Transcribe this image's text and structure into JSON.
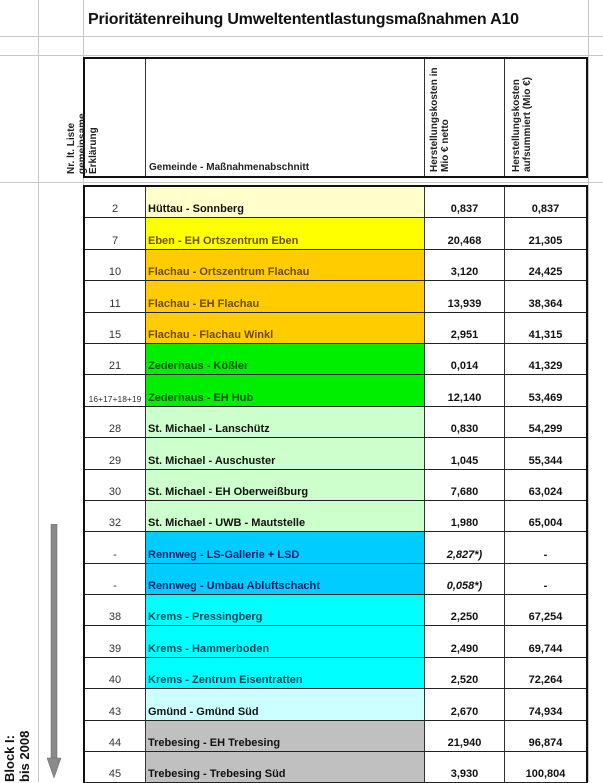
{
  "title": "Prioritätenreihung Umweltententlastungsmaßnahmen A10",
  "headers": {
    "nr": "Nr. lt. Liste gemeinsame Erklärung",
    "nr_lines": [
      "Nr. lt. Liste",
      "gemeinsame",
      "Erklärung"
    ],
    "gemeinde": "Gemeinde - Maßnahmenabschnitt",
    "kosten_lines": [
      "Herstellungskosten in",
      "Mio € netto"
    ],
    "summe_lines": [
      "Herstellungskosten",
      "aufsummiert (Mio €)"
    ]
  },
  "block_label_lines": [
    "Block I:",
    "bis 2008"
  ],
  "rows": [
    {
      "nr": "2",
      "name": "Hüttau - Sonnberg",
      "cost": "0,837",
      "sum": "0,837",
      "bg": "#FFFFCC",
      "fg": "#111111"
    },
    {
      "nr": "7",
      "name": "Eben - EH Ortszentrum Eben",
      "cost": "20,468",
      "sum": "21,305",
      "bg": "#FFFF00",
      "fg": "#6b5200"
    },
    {
      "nr": "10",
      "name": "Flachau - Ortszentrum Flachau",
      "cost": "3,120",
      "sum": "24,425",
      "bg": "#FFCC00",
      "fg": "#6b4a00"
    },
    {
      "nr": "11",
      "name": "Flachau - EH Flachau",
      "cost": "13,939",
      "sum": "38,364",
      "bg": "#FFCC00",
      "fg": "#6b4a00"
    },
    {
      "nr": "15",
      "name": "Flachau - Flachau Winkl",
      "cost": "2,951",
      "sum": "41,315",
      "bg": "#FFCC00",
      "fg": "#6b4a00"
    },
    {
      "nr": "21",
      "name": "Zederhaus - Kößler",
      "cost": "0,014",
      "sum": "41,329",
      "bg": "#00EE00",
      "fg": "#005500"
    },
    {
      "nr": "16+17+18+19",
      "name": "Zederhaus - EH Hub",
      "cost": "12,140",
      "sum": "53,469",
      "bg": "#00EE00",
      "fg": "#005500"
    },
    {
      "nr": "28",
      "name": "St. Michael - Lanschütz",
      "cost": "0,830",
      "sum": "54,299",
      "bg": "#CCFFCC",
      "fg": "#111111"
    },
    {
      "nr": "29",
      "name": "St. Michael - Auschuster",
      "cost": "1,045",
      "sum": "55,344",
      "bg": "#CCFFCC",
      "fg": "#111111"
    },
    {
      "nr": "30",
      "name": "St. Michael - EH Oberweißburg",
      "cost": "7,680",
      "sum": "63,024",
      "bg": "#CCFFCC",
      "fg": "#111111"
    },
    {
      "nr": "32",
      "name": "St. Michael - UWB - Mautstelle",
      "cost": "1,980",
      "sum": "65,004",
      "bg": "#CCFFCC",
      "fg": "#111111"
    },
    {
      "nr": "-",
      "name": "Rennweg - LS-Gallerie + LSD",
      "cost": "2,827*)",
      "sum": "-",
      "bg": "#00CCFF",
      "fg": "#002266",
      "italic": true
    },
    {
      "nr": "-",
      "name": "Rennweg - Umbau Abluftschacht",
      "cost": "0,058*)",
      "sum": "-",
      "bg": "#00CCFF",
      "fg": "#002266",
      "italic": true
    },
    {
      "nr": "38",
      "name": "Krems - Pressingberg",
      "cost": "2,250",
      "sum": "67,254",
      "bg": "#00FFFF",
      "fg": "#004455"
    },
    {
      "nr": "39",
      "name": "Krems - Hammerboden",
      "cost": "2,490",
      "sum": "69,744",
      "bg": "#00FFFF",
      "fg": "#004455"
    },
    {
      "nr": "40",
      "name": "Krems - Zentrum Eisentratten",
      "cost": "2,520",
      "sum": "72,264",
      "bg": "#00FFFF",
      "fg": "#004455"
    },
    {
      "nr": "43",
      "name": "Gmünd - Gmünd Süd",
      "cost": "2,670",
      "sum": "74,934",
      "bg": "#CCFFFF",
      "fg": "#111111"
    },
    {
      "nr": "44",
      "name": "Trebesing - EH Trebesing",
      "cost": "21,940",
      "sum": "96,874",
      "bg": "#C0C0C0",
      "fg": "#111111"
    },
    {
      "nr": "45",
      "name": "Trebesing - Trebesing Süd",
      "cost": "3,930",
      "sum": "100,804",
      "bg": "#C0C0C0",
      "fg": "#111111"
    }
  ]
}
